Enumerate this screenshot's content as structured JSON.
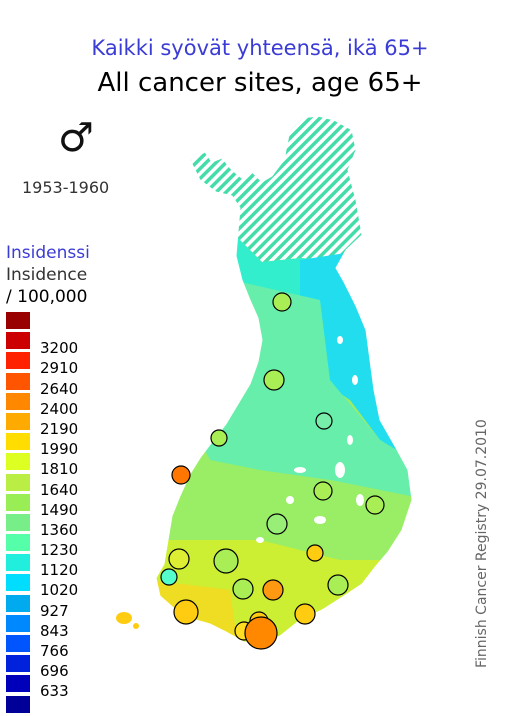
{
  "title_fi": "Kaikki syövät yhteensä, ikä 65+",
  "title_en": "All cancer sites, age 65+",
  "sex_symbol": "♂",
  "period": "1953-1960",
  "legend": {
    "title_fi": "Insidenssi",
    "title_en": "Insidence",
    "unit": "/ 100,000",
    "items": [
      {
        "label": "",
        "color": "#990000"
      },
      {
        "label": "3200",
        "color": "#cc0000"
      },
      {
        "label": "2910",
        "color": "#ff2200"
      },
      {
        "label": "2640",
        "color": "#ff5500"
      },
      {
        "label": "2400",
        "color": "#ff8800"
      },
      {
        "label": "2190",
        "color": "#ffaa00"
      },
      {
        "label": "1990",
        "color": "#ffdd00"
      },
      {
        "label": "1810",
        "color": "#ddff22"
      },
      {
        "label": "1640",
        "color": "#bbee44"
      },
      {
        "label": "1490",
        "color": "#99ee55"
      },
      {
        "label": "1360",
        "color": "#77ee88"
      },
      {
        "label": "1230",
        "color": "#55ffaa"
      },
      {
        "label": "1120",
        "color": "#22eedd"
      },
      {
        "label": "1020",
        "color": "#00ddff"
      },
      {
        "label": "927",
        "color": "#00aaee"
      },
      {
        "label": "843",
        "color": "#0088ff"
      },
      {
        "label": "766",
        "color": "#0055ff"
      },
      {
        "label": "696",
        "color": "#0022dd"
      },
      {
        "label": "633",
        "color": "#0000bb"
      },
      {
        "label": "",
        "color": "#000099"
      }
    ]
  },
  "credit": "Finnish Cancer Registry 29.07.2010",
  "map_colors": {
    "north_hatch": "#44ddaa",
    "east_blue": "#22ddee",
    "mid": "#66eeaa",
    "south_mid": "#99ee66",
    "south": "#ccee33",
    "southwest": "#eedd22"
  },
  "circles": [
    {
      "color": "#aaee55"
    },
    {
      "color": "#aaee55"
    },
    {
      "color": "#77eeaa"
    },
    {
      "color": "#aaee55"
    },
    {
      "color": "#ff7700"
    },
    {
      "color": "#aaee55"
    },
    {
      "color": "#aaee55"
    },
    {
      "color": "#99ee77"
    },
    {
      "color": "#ddee33"
    },
    {
      "color": "#aaee55"
    },
    {
      "color": "#ffcc11"
    },
    {
      "color": "#55ffcc"
    },
    {
      "color": "#aaee55"
    },
    {
      "color": "#ff9911"
    },
    {
      "color": "#aaee55"
    },
    {
      "color": "#ffcc11"
    },
    {
      "color": "#ffcc11"
    },
    {
      "color": "#ffdd22"
    },
    {
      "color": "#ffcc11"
    },
    {
      "color": "#ff8800"
    }
  ]
}
